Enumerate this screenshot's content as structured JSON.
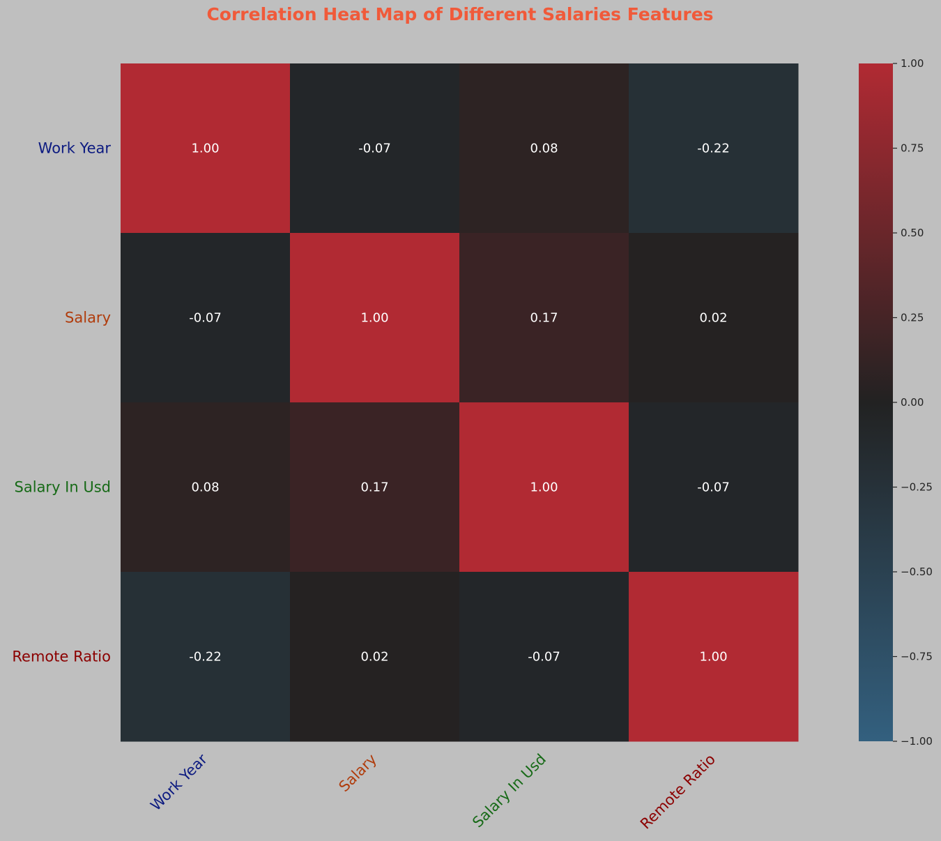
{
  "chart_data": {
    "type": "heatmap",
    "title": "Correlation Heat Map of Different Salaries Features",
    "title_color": "#f05a3a",
    "background": "#bfbfbf",
    "labels": [
      "Work Year",
      "Salary",
      "Salary In Usd",
      "Remote Ratio"
    ],
    "label_colors": [
      "#0c1a80",
      "#b03c0c",
      "#176a17",
      "#8b0000"
    ],
    "matrix": [
      [
        1.0,
        -0.07,
        0.08,
        -0.22
      ],
      [
        -0.07,
        1.0,
        0.17,
        0.02
      ],
      [
        0.08,
        0.17,
        1.0,
        -0.07
      ],
      [
        -0.22,
        0.02,
        -0.07,
        1.0
      ]
    ],
    "annotation_format": "2 decimals",
    "annotation_color": "#ffffff",
    "color_range": [
      -1.0,
      1.0
    ],
    "colormap": {
      "negative_end": "#33607f",
      "center": "#222222",
      "positive_end": "#b12a33"
    },
    "colorbar_ticks": [
      1.0,
      0.75,
      0.5,
      0.25,
      0.0,
      -0.25,
      -0.5,
      -0.75,
      -1.0
    ],
    "colorbar_tick_labels": [
      "1.00",
      "0.75",
      "0.50",
      "0.25",
      "0.00",
      "−0.25",
      "−0.50",
      "−0.75",
      "−1.00"
    ],
    "legend": "colorbar-right"
  }
}
